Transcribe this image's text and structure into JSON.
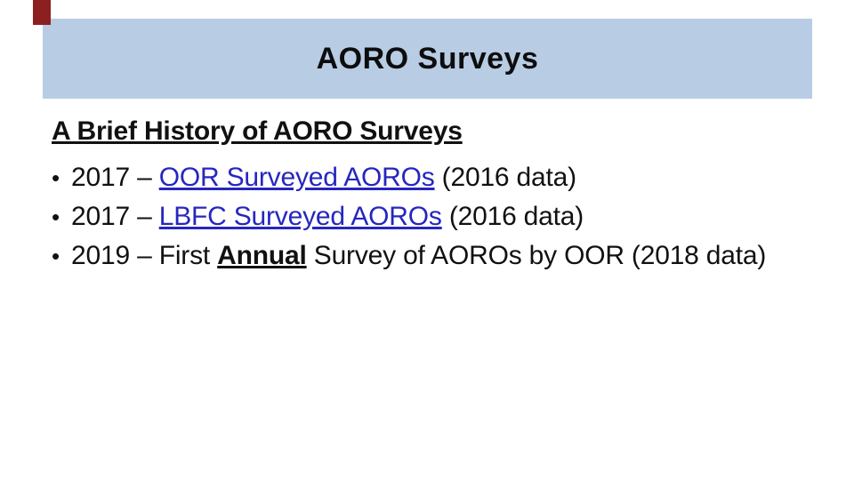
{
  "slide": {
    "colors": {
      "accent": "#8C1F1F",
      "header_bg": "#B8CCE4",
      "link": "#2626BF"
    },
    "header": {
      "title": "AORO Surveys"
    },
    "body": {
      "heading": "A Brief History of AORO Surveys",
      "bullet_char": "•",
      "bullets": [
        {
          "pre": "2017 – ",
          "link": "OOR Surveyed AOROs",
          "post": " (2016 data)"
        },
        {
          "pre": "2017 – ",
          "link": "LBFC Surveyed AOROs",
          "post": " (2016 data)"
        },
        {
          "pre": "2019 – First ",
          "emphasis": "Annual",
          "post": " Survey of AOROs by OOR (2018 data)"
        }
      ]
    }
  }
}
